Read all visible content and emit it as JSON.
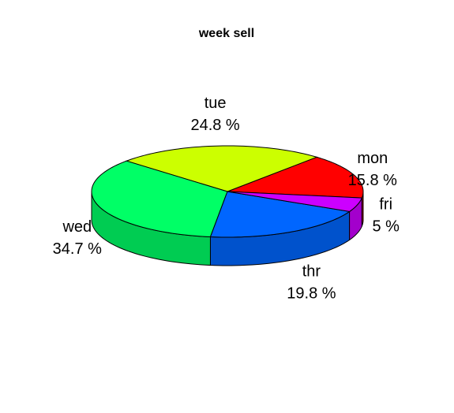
{
  "chart_data": {
    "type": "pie",
    "title": "week sell",
    "three_d": true,
    "slices": [
      {
        "name": "mon",
        "pct_label": "15.8 %",
        "value": 15.8,
        "color": "#FF0000",
        "side_color": "#CC0000"
      },
      {
        "name": "tue",
        "pct_label": "24.8 %",
        "value": 24.8,
        "color": "#CCFF00",
        "side_color": "#A3CC00"
      },
      {
        "name": "wed",
        "pct_label": "34.7 %",
        "value": 34.7,
        "color": "#00FF66",
        "side_color": "#00CC52"
      },
      {
        "name": "thr",
        "pct_label": "19.8 %",
        "value": 19.8,
        "color": "#0066FF",
        "side_color": "#0052CC"
      },
      {
        "name": "fri",
        "pct_label": "5 %",
        "value": 5,
        "color": "#CC00FF",
        "side_color": "#A300CC"
      }
    ]
  }
}
